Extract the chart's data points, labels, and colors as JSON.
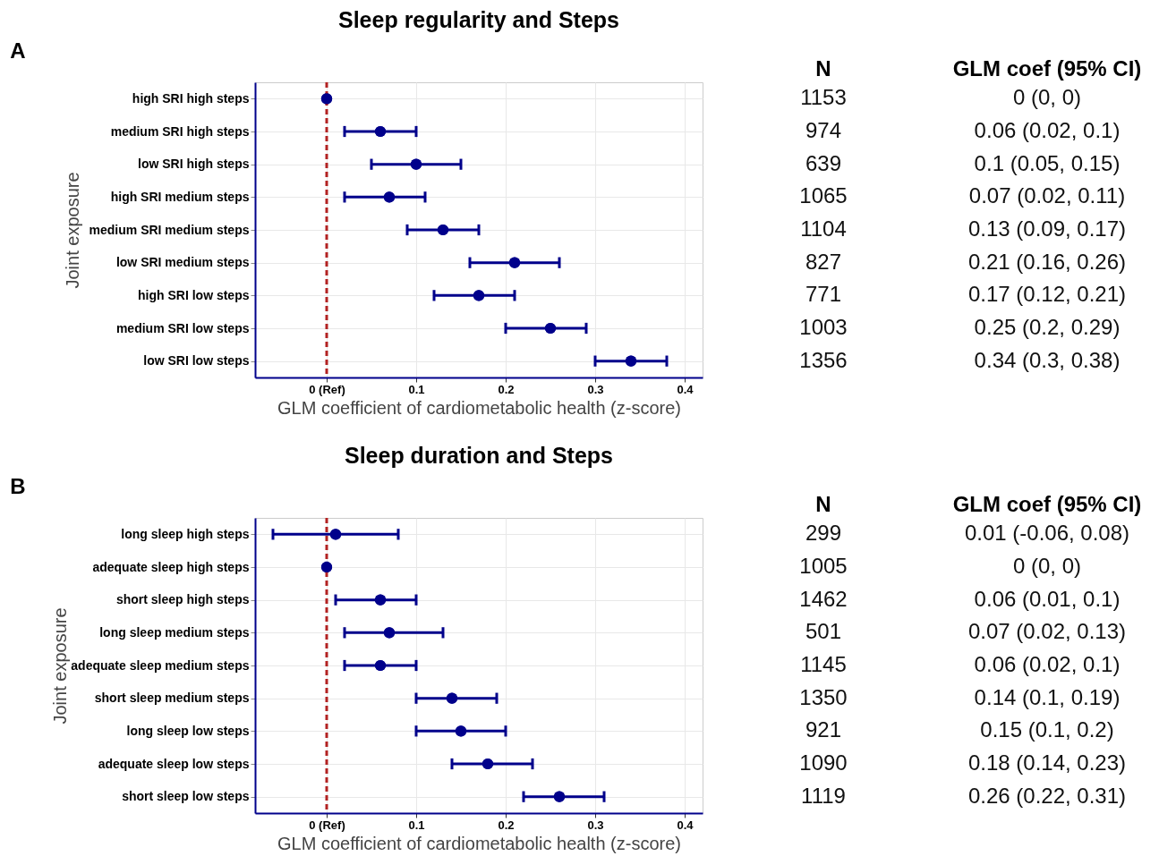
{
  "chart_data": [
    {
      "type": "scatter",
      "orientation": "horizontal",
      "title": "Sleep regularity and Steps",
      "xlabel": "GLM coefficient of cardiometabolic health (z-score)",
      "ylabel": "Joint exposure",
      "categories": [
        "high SRI high steps",
        "medium SRI high steps",
        "low SRI high steps",
        "high SRI medium steps",
        "medium SRI medium steps",
        "low SRI medium steps",
        "high SRI low steps",
        "medium SRI low steps",
        "low SRI low steps"
      ],
      "values": [
        0,
        0.06,
        0.1,
        0.07,
        0.13,
        0.21,
        0.17,
        0.25,
        0.34
      ],
      "errors": [
        [
          0,
          0
        ],
        [
          0.02,
          0.1
        ],
        [
          0.05,
          0.15
        ],
        [
          0.02,
          0.11
        ],
        [
          0.09,
          0.17
        ],
        [
          0.16,
          0.26
        ],
        [
          0.12,
          0.21
        ],
        [
          0.2,
          0.29
        ],
        [
          0.3,
          0.38
        ]
      ],
      "color": "#00008b",
      "marker": "circle",
      "grid": true,
      "xlim": [
        -0.08,
        0.42
      ],
      "xticks": [
        {
          "value": 0,
          "label": "0 (Ref)"
        },
        0.1,
        0.2,
        0.3,
        0.4
      ],
      "ref_lines": [
        {
          "axis": "x",
          "value": 0,
          "color": "#b22222",
          "line_style": "dashed"
        }
      ],
      "annotations": [
        "A",
        "N",
        "GLM coef (95% CI)",
        "1153",
        "974",
        "639",
        "1065",
        "1104",
        "827",
        "771",
        "1003",
        "1356",
        "0 (0, 0)",
        "0.06 (0.02, 0.1)",
        "0.1 (0.05, 0.15)",
        "0.07 (0.02, 0.11)",
        "0.13 (0.09, 0.17)",
        "0.21 (0.16, 0.26)",
        "0.17 (0.12, 0.21)",
        "0.25 (0.2, 0.29)",
        "0.34 (0.3, 0.38)"
      ]
    },
    {
      "type": "scatter",
      "orientation": "horizontal",
      "title": "Sleep duration and Steps",
      "xlabel": "GLM coefficient of cardiometabolic health (z-score)",
      "ylabel": "Joint exposure",
      "categories": [
        "long sleep high steps",
        "adequate sleep high steps",
        "short sleep high steps",
        "long sleep medium steps",
        "adequate sleep medium steps",
        "short sleep medium steps",
        "long sleep low steps",
        "adequate sleep low steps",
        "short sleep low steps"
      ],
      "values": [
        0.01,
        0,
        0.06,
        0.07,
        0.06,
        0.14,
        0.15,
        0.18,
        0.26
      ],
      "errors": [
        [
          -0.06,
          0.08
        ],
        [
          0,
          0
        ],
        [
          0.01,
          0.1
        ],
        [
          0.02,
          0.13
        ],
        [
          0.02,
          0.1
        ],
        [
          0.1,
          0.19
        ],
        [
          0.1,
          0.2
        ],
        [
          0.14,
          0.23
        ],
        [
          0.22,
          0.31
        ]
      ],
      "color": "#00008b",
      "marker": "circle",
      "grid": true,
      "xlim": [
        -0.08,
        0.42
      ],
      "xticks": [
        {
          "value": 0,
          "label": "0 (Ref)"
        },
        0.1,
        0.2,
        0.3,
        0.4
      ],
      "ref_lines": [
        {
          "axis": "x",
          "value": 0,
          "color": "#b22222",
          "line_style": "dashed"
        }
      ],
      "annotations": [
        "B",
        "N",
        "GLM coef (95% CI)",
        "299",
        "1005",
        "1462",
        "501",
        "1145",
        "1350",
        "921",
        "1090",
        "1119",
        "0.01 (-0.06, 0.08)",
        "0 (0, 0)",
        "0.06 (0.01, 0.1)",
        "0.07 (0.02, 0.13)",
        "0.06 (0.02, 0.1)",
        "0.14 (0.1, 0.19)",
        "0.15 (0.1, 0.2)",
        "0.18 (0.14, 0.23)",
        "0.26 (0.22, 0.31)"
      ]
    }
  ]
}
